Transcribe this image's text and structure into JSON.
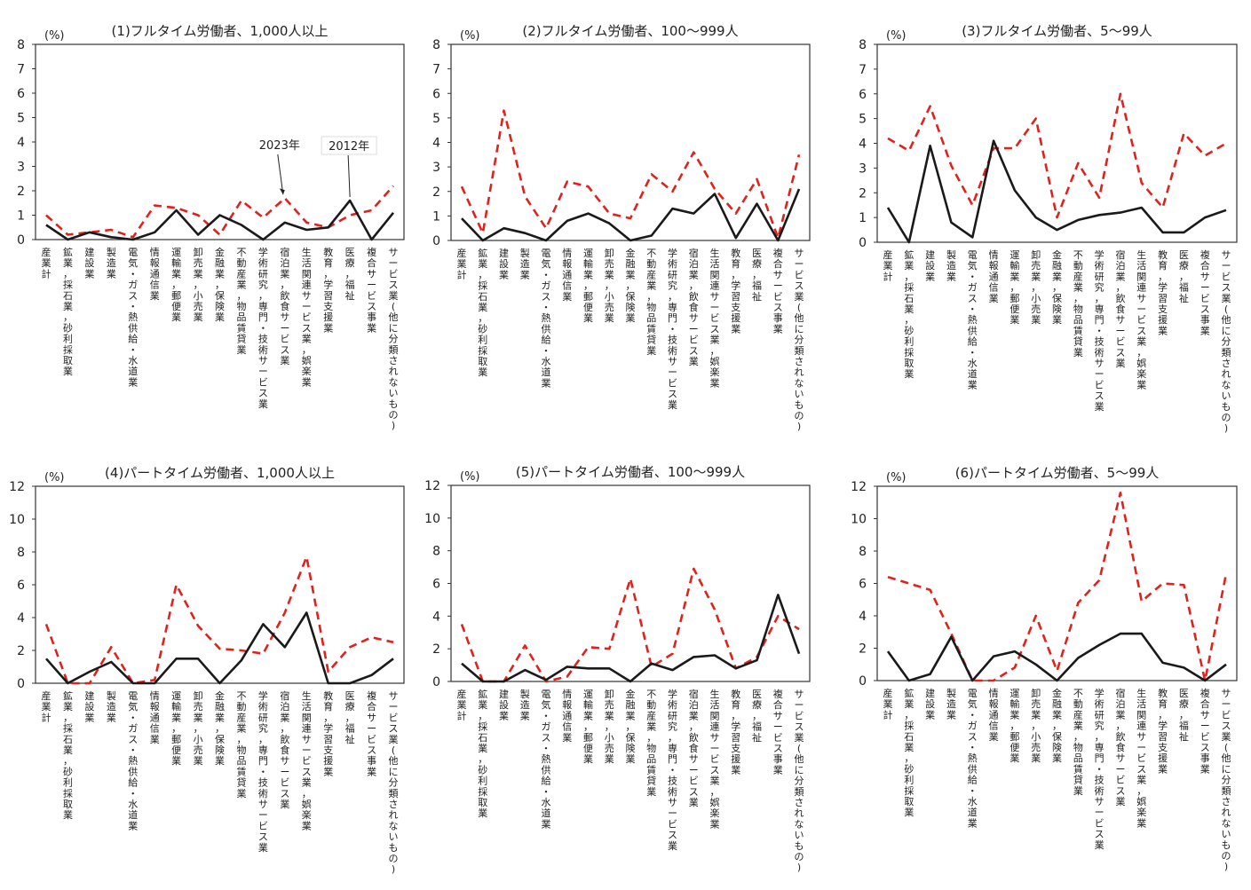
{
  "legend_labels": {
    "s2023": "2023年",
    "s2012": "2012年"
  },
  "categories": [
    "産業計",
    "鉱業，採石業，砂利採取業",
    "建設業",
    "製造業",
    "電気・ガス・熱供給・水道業",
    "情報通信業",
    "運輸業，郵便業",
    "卸売業，小売業",
    "金融業，保険業",
    "不動産業，物品賃貸業",
    "学術研究，専門・技術サービス業",
    "宿泊業，飲食サービス業",
    "生活関連サービス業，娯楽業",
    "教育，学習支援業",
    "医療，福祉",
    "複合サービス事業",
    "サービス業(他に分類されないもの)"
  ],
  "colors": {
    "s2023": "#e0221f",
    "s2012": "#1a1a1a"
  },
  "chart_data": [
    {
      "type": "line",
      "title": "(1)フルタイム労働者、1,000人以上",
      "ylabel": "(%)",
      "ylim": [
        0,
        8
      ],
      "yticks": [
        0,
        1,
        2,
        3,
        4,
        5,
        6,
        7,
        8
      ],
      "series": [
        {
          "name": "2023年",
          "values": [
            1.0,
            0.2,
            0.3,
            0.4,
            0.1,
            1.4,
            1.3,
            1.0,
            0.2,
            1.6,
            0.9,
            1.7,
            0.7,
            0.5,
            1.0,
            1.2,
            2.2
          ]
        },
        {
          "name": "2012年",
          "values": [
            0.6,
            0.0,
            0.3,
            0.1,
            0.0,
            0.3,
            1.2,
            0.2,
            1.0,
            0.6,
            0.0,
            0.7,
            0.4,
            0.5,
            1.6,
            0.0,
            1.1
          ]
        }
      ]
    },
    {
      "type": "line",
      "title": "(2)フルタイム労働者、100～999人",
      "ylabel": "(%)",
      "ylim": [
        0,
        8
      ],
      "yticks": [
        0,
        1,
        2,
        3,
        4,
        5,
        6,
        7,
        8
      ],
      "series": [
        {
          "name": "2023年",
          "values": [
            2.2,
            0.3,
            5.3,
            1.8,
            0.5,
            2.4,
            2.2,
            1.1,
            0.9,
            2.7,
            2.0,
            3.6,
            2.1,
            1.1,
            2.5,
            0.1,
            3.5
          ]
        },
        {
          "name": "2012年",
          "values": [
            0.9,
            0.0,
            0.5,
            0.3,
            0.0,
            0.8,
            1.1,
            0.7,
            0.0,
            0.2,
            1.3,
            1.1,
            1.9,
            0.1,
            1.5,
            0.0,
            2.1
          ]
        }
      ]
    },
    {
      "type": "line",
      "title": "(3)フルタイム労働者、5～99人",
      "ylabel": "(%)",
      "ylim": [
        0,
        8
      ],
      "yticks": [
        0,
        1,
        2,
        3,
        4,
        5,
        6,
        7,
        8
      ],
      "series": [
        {
          "name": "2023年",
          "values": [
            4.2,
            3.7,
            5.5,
            3.1,
            1.5,
            3.8,
            3.8,
            5.0,
            1.0,
            3.2,
            1.8,
            6.0,
            2.4,
            1.4,
            4.4,
            3.5,
            4.0
          ]
        },
        {
          "name": "2012年",
          "values": [
            1.4,
            0.0,
            3.9,
            0.8,
            0.2,
            4.1,
            2.1,
            1.0,
            0.5,
            0.9,
            1.1,
            1.2,
            1.4,
            0.4,
            0.4,
            1.0,
            1.3
          ]
        }
      ]
    },
    {
      "type": "line",
      "title": "(4)パートタイム労働者、1,000人以上",
      "ylabel": "(%)",
      "ylim": [
        0,
        12
      ],
      "yticks": [
        0,
        2,
        4,
        6,
        8,
        10,
        12
      ],
      "series": [
        {
          "name": "2023年",
          "values": [
            3.6,
            0.0,
            0.0,
            2.2,
            0.0,
            0.2,
            6.0,
            3.5,
            2.1,
            2.0,
            1.8,
            4.3,
            7.7,
            0.7,
            2.2,
            2.8,
            2.5
          ]
        },
        {
          "name": "2012年",
          "values": [
            1.5,
            0.0,
            0.7,
            1.3,
            0.0,
            0.0,
            1.5,
            1.5,
            0.0,
            1.4,
            3.6,
            2.2,
            4.3,
            0.0,
            0.0,
            0.5,
            1.5
          ]
        }
      ]
    },
    {
      "type": "line",
      "title": "(5)パートタイム労働者、100～999人",
      "ylabel": "(%)",
      "ylim": [
        0,
        12
      ],
      "yticks": [
        0,
        2,
        4,
        6,
        8,
        10,
        12
      ],
      "series": [
        {
          "name": "2023年",
          "values": [
            3.5,
            0.0,
            0.0,
            2.2,
            0.0,
            0.3,
            2.1,
            2.0,
            6.3,
            0.9,
            1.7,
            6.9,
            4.4,
            0.8,
            1.5,
            4.0,
            3.2
          ]
        },
        {
          "name": "2012年",
          "values": [
            1.1,
            0.0,
            0.0,
            0.7,
            0.1,
            0.9,
            0.8,
            0.8,
            0.0,
            1.1,
            0.7,
            1.5,
            1.6,
            0.8,
            1.3,
            5.3,
            1.7
          ]
        }
      ]
    },
    {
      "type": "line",
      "title": "(6)パートタイム労働者、5～99人",
      "ylabel": "(%)",
      "ylim": [
        0,
        12
      ],
      "yticks": [
        0,
        2,
        4,
        6,
        8,
        10,
        12
      ],
      "series": [
        {
          "name": "2023年",
          "values": [
            6.4,
            6.0,
            5.6,
            2.9,
            0.0,
            0.0,
            0.8,
            4.0,
            0.6,
            4.8,
            6.2,
            11.6,
            4.9,
            6.0,
            5.9,
            0.0,
            6.6
          ]
        },
        {
          "name": "2012年",
          "values": [
            1.8,
            0.0,
            0.4,
            2.7,
            0.0,
            1.5,
            1.8,
            1.0,
            0.0,
            1.4,
            2.2,
            2.9,
            2.9,
            1.1,
            0.8,
            0.0,
            1.0
          ]
        }
      ]
    }
  ]
}
